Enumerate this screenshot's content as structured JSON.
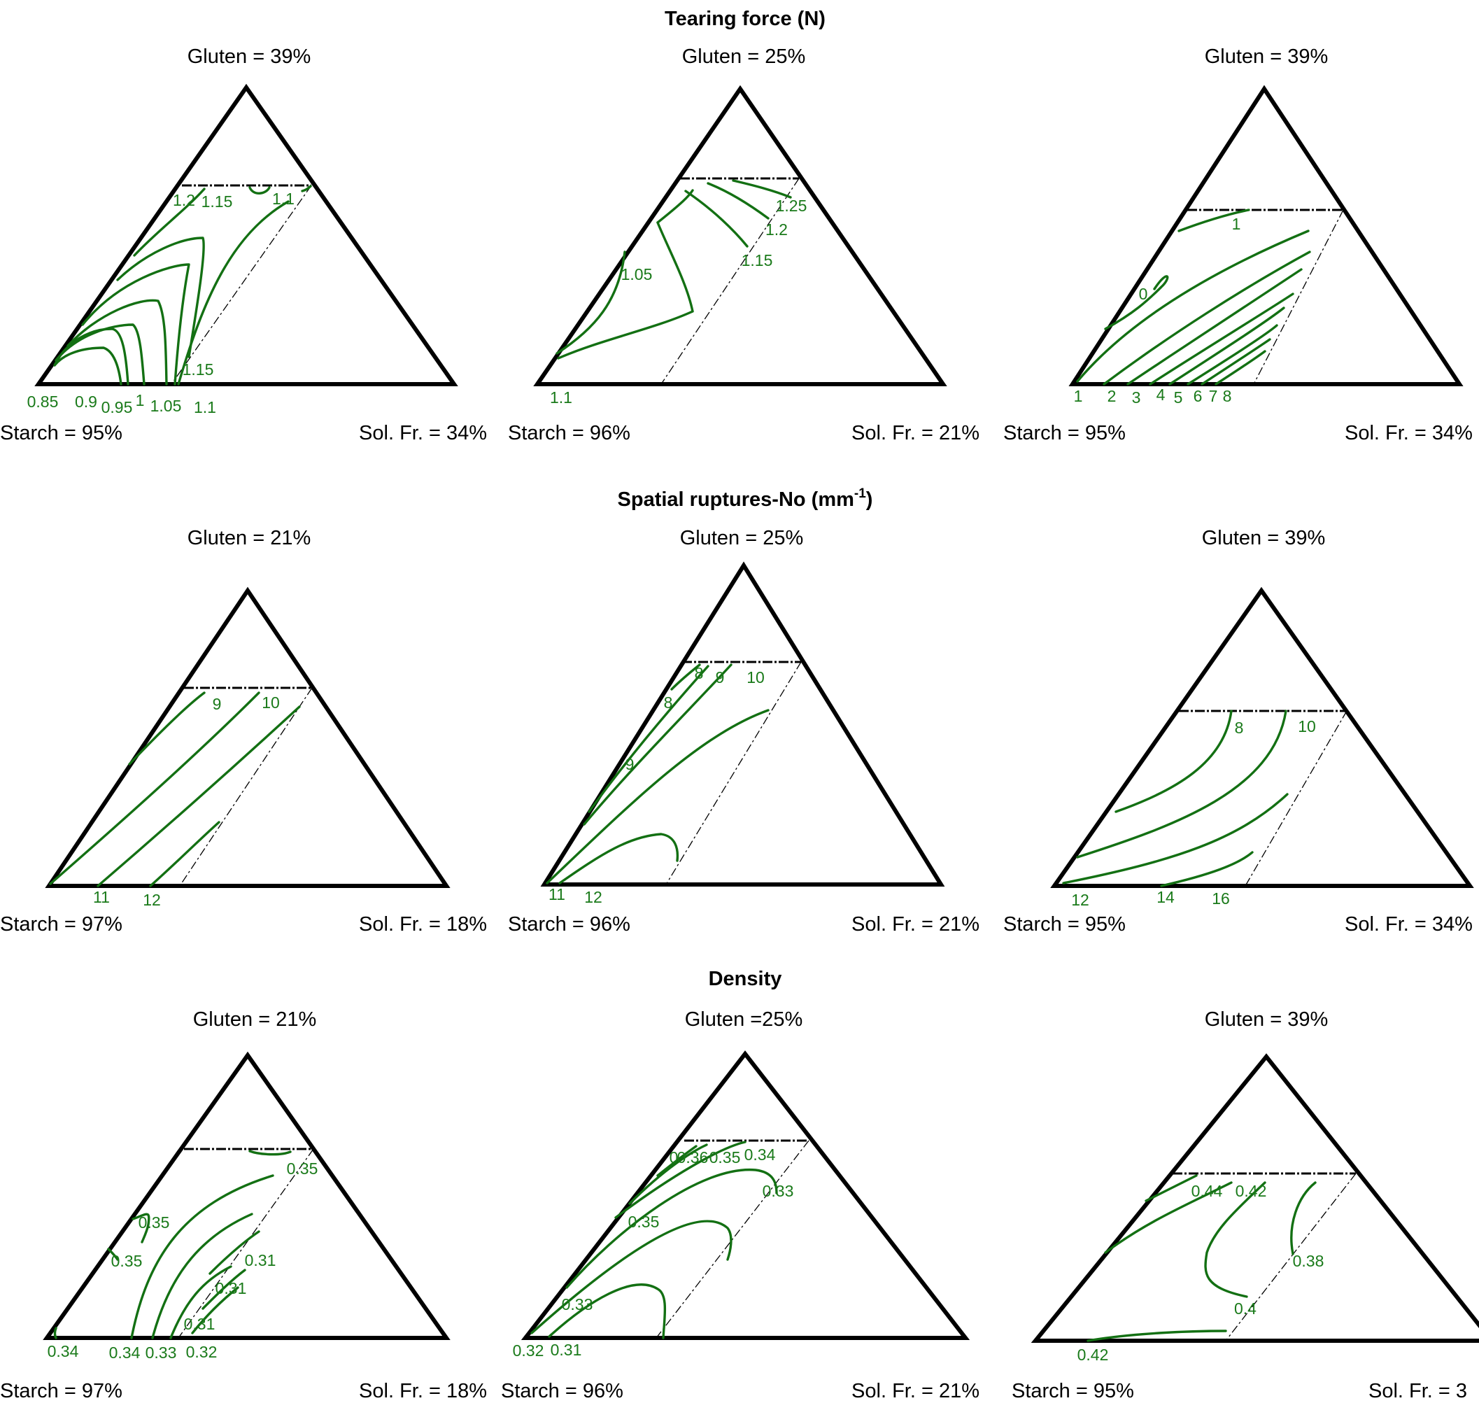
{
  "chart_data": {
    "type": "ternary-contour",
    "sections": [
      {
        "title": "Tearing force (N)",
        "panels": [
          {
            "title": "Gluten = 39%",
            "left_corner": "Starch = 95%",
            "right_corner": "Sol. Fr. = 34%",
            "contour_levels": [
              "0.85",
              "0.9",
              "0.95",
              "1",
              "1.05",
              "1.1",
              "1.15",
              "1.2",
              "1.15",
              "1.1"
            ]
          },
          {
            "title": "Gluten = 25%",
            "left_corner": "Starch = 96%",
            "right_corner": "Sol. Fr. = 21%",
            "contour_levels": [
              "1.1",
              "1.05",
              "1.15",
              "1.2",
              "1.25"
            ]
          },
          {
            "title": "Gluten = 39%",
            "left_corner": "Starch = 95%",
            "right_corner": "Sol. Fr. = 34%",
            "contour_levels": [
              "1",
              "2",
              "3",
              "4",
              "5",
              "6",
              "7",
              "8",
              "0",
              "1"
            ]
          }
        ]
      },
      {
        "title": "Spatial ruptures-No (mm",
        "title_sup": "-1",
        "title_end": ")",
        "panels": [
          {
            "title": "Gluten = 21%",
            "left_corner": "Starch = 97%",
            "right_corner": "Sol. Fr. = 18%",
            "contour_levels": [
              "11",
              "12",
              "9",
              "10"
            ]
          },
          {
            "title": "Gluten = 25%",
            "left_corner": "Starch = 96%",
            "right_corner": "Sol. Fr. = 21%",
            "contour_levels": [
              "11",
              "12",
              "9",
              "8",
              "8",
              "9",
              "10"
            ]
          },
          {
            "title": "Gluten = 39%",
            "left_corner": "Starch = 95%",
            "right_corner": "Sol. Fr. = 34%",
            "contour_levels": [
              "12",
              "14",
              "16",
              "8",
              "10"
            ]
          }
        ]
      },
      {
        "title": "Density",
        "panels": [
          {
            "title": "Gluten = 21%",
            "left_corner": "Starch = 97%",
            "right_corner": "Sol. Fr. = 18%",
            "contour_levels": [
              "0.34",
              "0.34",
              "0.33",
              "0.32",
              "0.31",
              "0.31",
              "0.31",
              "0.35",
              "0.35",
              "0.35"
            ]
          },
          {
            "title": "Gluten =25%",
            "left_corner": "Starch = 96%",
            "right_corner": "Sol. Fr. = 21%",
            "contour_levels": [
              "0.32",
              "0.31",
              "0.33",
              "0.35",
              "0.33",
              "0.34",
              "0.35",
              "0.36",
              "0"
            ]
          },
          {
            "title": "Gluten = 39%",
            "left_corner": "Starch = 95%",
            "right_corner": "Sol. Fr. = 3",
            "contour_levels": [
              "0.42",
              "0.4",
              "0.38",
              "0.42",
              "0.44"
            ]
          }
        ]
      }
    ]
  }
}
